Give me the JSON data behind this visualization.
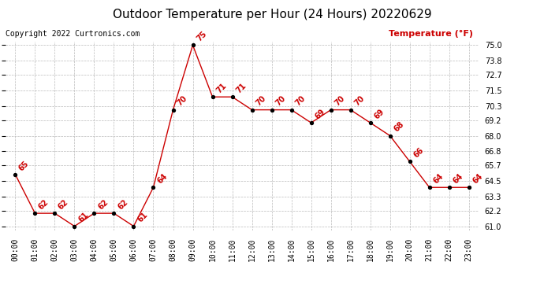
{
  "title": "Outdoor Temperature per Hour (24 Hours) 20220629",
  "copyright_text": "Copyright 2022 Curtronics.com",
  "legend_label": "Temperature (°F)",
  "hours": [
    "00:00",
    "01:00",
    "02:00",
    "03:00",
    "04:00",
    "05:00",
    "06:00",
    "07:00",
    "08:00",
    "09:00",
    "10:00",
    "11:00",
    "12:00",
    "13:00",
    "14:00",
    "15:00",
    "16:00",
    "17:00",
    "18:00",
    "19:00",
    "20:00",
    "21:00",
    "22:00",
    "23:00"
  ],
  "temperatures": [
    65,
    62,
    62,
    61,
    62,
    62,
    61,
    64,
    70,
    75,
    71,
    71,
    70,
    70,
    70,
    69,
    70,
    70,
    69,
    68,
    66,
    64,
    64,
    64
  ],
  "line_color": "#cc0000",
  "marker_color": "#000000",
  "title_color": "#000000",
  "label_color": "#cc0000",
  "copyright_color": "#000000",
  "bg_color": "#ffffff",
  "grid_color": "#bbbbbb",
  "ylim_min": 61.0,
  "ylim_max": 75.0,
  "yticks": [
    61.0,
    62.2,
    63.3,
    64.5,
    65.7,
    66.8,
    68.0,
    69.2,
    70.3,
    71.5,
    72.7,
    73.8,
    75.0
  ],
  "title_fontsize": 11,
  "copyright_fontsize": 7,
  "legend_fontsize": 8,
  "tick_fontsize": 7,
  "annotation_fontsize": 7
}
